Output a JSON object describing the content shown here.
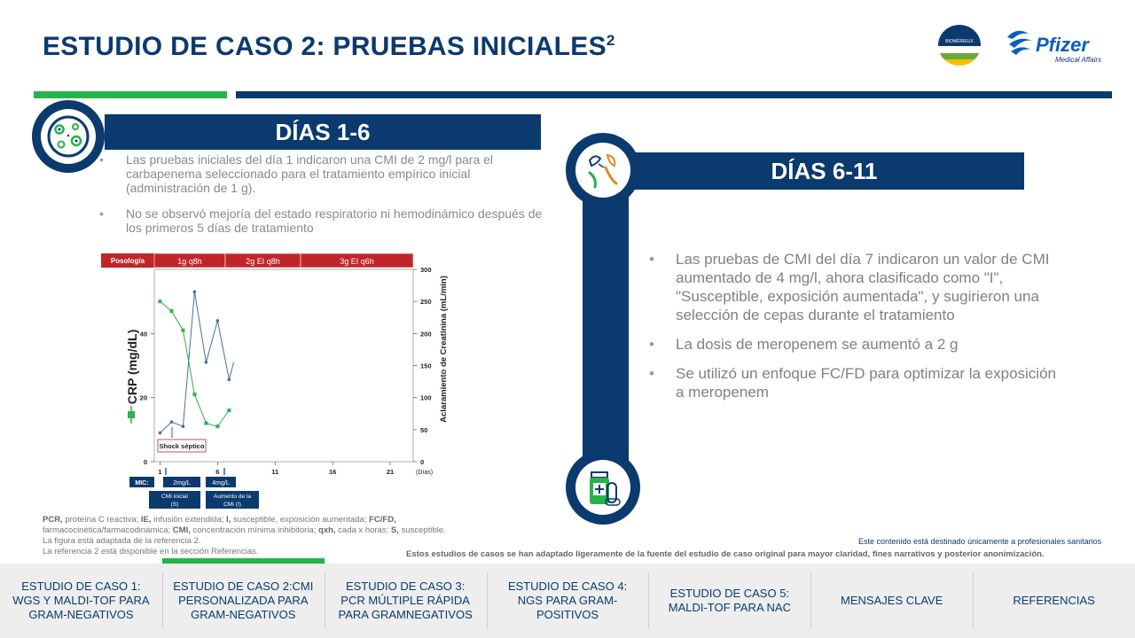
{
  "header": {
    "title": "ESTUDIO DE CASO 2: PRUEBAS INICIALES",
    "title_sup": "2",
    "logo_biomerieux": "BIOMÉRIEUX",
    "logo_pfizer": "Pfizer",
    "logo_pfizer_sub": "Medical Affairs"
  },
  "left": {
    "heading": "DÍAS 1-6",
    "bullets": [
      "Las pruebas iniciales del día 1 indicaron una CMI de 2 mg/l para el carbapenema seleccionado para el tratamiento empírico inicial (administración de 1 g).",
      "No se observó mejoría del estado respiratorio ni hemodinámico después de los primeros 5 días de tratamiento"
    ]
  },
  "right": {
    "heading": "DÍAS 6-11",
    "bullets": [
      "Las pruebas de CMI del día 7 indicaron un valor de CMI aumentado de 4 mg/l, ahora clasificado como \"I\", \"Susceptible, exposición aumentada\", y sugirieron una selección de cepas durante el tratamiento",
      "La dosis de meropenem se aumentó a 2 g",
      "Se utilizó un enfoque FC/FD para optimizar la exposición a meropenem"
    ]
  },
  "chart_data": {
    "type": "line",
    "posology_label": "Posología",
    "dosing": [
      "1g q8h",
      "2g EI q8h",
      "3g EI q6h"
    ],
    "ylabel_left": "CRP (mg/dL)",
    "ylabel_right": "Aclaramiento de Creatinina (mL/min)",
    "xunit": "(Días)",
    "x_ticks": [
      "1",
      "6",
      "11",
      "16",
      "21"
    ],
    "y_left_ticks": [
      "0",
      "20",
      "40"
    ],
    "y_right_ticks": [
      "0",
      "50",
      "100",
      "150",
      "200",
      "250",
      "300"
    ],
    "ylim_left": [
      0,
      60
    ],
    "ylim_right": [
      0,
      300
    ],
    "xlim": [
      0.5,
      23
    ],
    "series": [
      {
        "name": "CRP",
        "color": "#2bb34a",
        "axis": "left",
        "x": [
          1,
          2,
          3,
          4,
          5,
          6,
          7
        ],
        "y": [
          50,
          47,
          41,
          21,
          12,
          11,
          16
        ]
      },
      {
        "name": "Aclaramiento de Creatinina",
        "color": "#4a6e9c",
        "axis": "right",
        "x": [
          1,
          2,
          3,
          4,
          5,
          6,
          7,
          7.4
        ],
        "y": [
          45,
          62,
          55,
          265,
          155,
          220,
          128,
          155
        ]
      }
    ],
    "annotation": "Shock séptico",
    "mic_label": "MIC:",
    "mic_values": [
      "2mg/L",
      "4mg/L"
    ],
    "mic_notes": [
      "CMI inicial (S)",
      "Aumento de la CMI (I)"
    ]
  },
  "footnotes": {
    "abbrev": "PCR, proteína C reactiva; IE, infusión extendida; I, susceptible, exposición aumentada; FC/FD, farmacocinética/farmacodinámica; CMI, concentración mínima inhibitoria; qxh, cada x horas; S, susceptible.",
    "adapted": "La figura está adaptada de la referencia 2.",
    "reference": "La referencia 2 está disponible en la sección Referencias.",
    "hcp": "Este contenido está destinado únicamente a profesionales sanitarios",
    "disclaimer": "Estos estudios de casos se han adaptado ligeramente de la fuente del estudio de caso original para mayor claridad, fines narrativos y posterior anonimización."
  },
  "nav": {
    "items": [
      "ESTUDIO  DE CASO 1: WGS Y MALDI-TOF PARA GRAM-NEGATIVOS",
      "ESTUDIO  DE CASO 2:CMI PERSONALIZADA PARA GRAM-NEGATIVOS",
      "ESTUDIO  DE CASO 3: PCR MÚLTIPLE RÁPIDA PARA GRAMNEGATIVOS",
      "ESTUDIO  DE CASO 4: NGS PARA GRAM-POSITIVOS",
      "ESTUDIO  DE CASO 5: MALDI-TOF  PARA NAC",
      "MENSAJES CLAVE",
      "REFERENCIAS"
    ],
    "active_index": 1,
    "active_color": "#27b34b"
  },
  "colors": {
    "navy": "#0b3a6e",
    "green": "#27b34b",
    "red": "#c0252a"
  }
}
